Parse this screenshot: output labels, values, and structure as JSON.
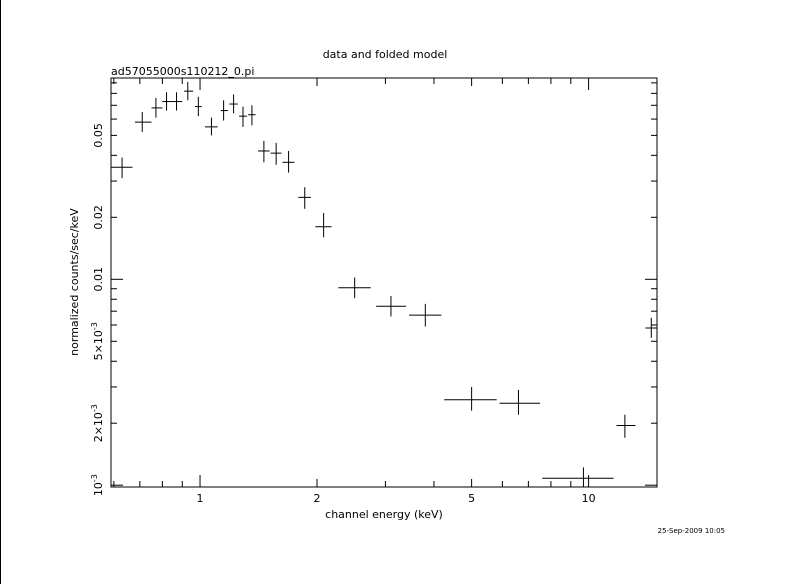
{
  "chart_data": {
    "type": "scatter",
    "title": "data and folded model",
    "subtitle": "ad57055000s110212_0.pi",
    "xlabel": "channel energy (keV)",
    "ylabel": "normalized counts/sec/keV",
    "x_scale": "log",
    "y_scale": "log",
    "xlim": [
      0.59,
      15.0
    ],
    "ylim": [
      0.00098,
      0.095
    ],
    "x_ticks": [
      {
        "value": 1,
        "label": "1"
      },
      {
        "value": 2,
        "label": "2"
      },
      {
        "value": 5,
        "label": "5"
      },
      {
        "value": 10,
        "label": "10"
      }
    ],
    "y_ticks": [
      {
        "value": 0.001,
        "label": "10",
        "sup": "-3"
      },
      {
        "value": 0.002,
        "label": "2×10",
        "sup": "-3"
      },
      {
        "value": 0.005,
        "label": "5×10",
        "sup": "-3"
      },
      {
        "value": 0.01,
        "label": "0.01"
      },
      {
        "value": 0.02,
        "label": "0.02"
      },
      {
        "value": 0.05,
        "label": "0.05"
      }
    ],
    "series": [
      {
        "points": [
          {
            "x": 0.63,
            "y": 0.035,
            "xlo": 0.59,
            "xhi": 0.67,
            "ylo": 0.031,
            "yhi": 0.039
          },
          {
            "x": 0.71,
            "y": 0.058,
            "xlo": 0.68,
            "xhi": 0.75,
            "ylo": 0.052,
            "yhi": 0.065
          },
          {
            "x": 0.77,
            "y": 0.068,
            "xlo": 0.75,
            "xhi": 0.8,
            "ylo": 0.061,
            "yhi": 0.076
          },
          {
            "x": 0.82,
            "y": 0.073,
            "xlo": 0.8,
            "xhi": 0.85,
            "ylo": 0.066,
            "yhi": 0.081
          },
          {
            "x": 0.87,
            "y": 0.073,
            "xlo": 0.85,
            "xhi": 0.9,
            "ylo": 0.066,
            "yhi": 0.081
          },
          {
            "x": 0.93,
            "y": 0.082,
            "xlo": 0.91,
            "xhi": 0.96,
            "ylo": 0.074,
            "yhi": 0.091
          },
          {
            "x": 0.99,
            "y": 0.069,
            "xlo": 0.97,
            "xhi": 1.01,
            "ylo": 0.062,
            "yhi": 0.077
          },
          {
            "x": 1.07,
            "y": 0.055,
            "xlo": 1.03,
            "xhi": 1.11,
            "ylo": 0.05,
            "yhi": 0.061
          },
          {
            "x": 1.15,
            "y": 0.066,
            "xlo": 1.13,
            "xhi": 1.18,
            "ylo": 0.059,
            "yhi": 0.074
          },
          {
            "x": 1.22,
            "y": 0.071,
            "xlo": 1.19,
            "xhi": 1.25,
            "ylo": 0.064,
            "yhi": 0.079
          },
          {
            "x": 1.29,
            "y": 0.062,
            "xlo": 1.26,
            "xhi": 1.32,
            "ylo": 0.055,
            "yhi": 0.069
          },
          {
            "x": 1.36,
            "y": 0.063,
            "xlo": 1.33,
            "xhi": 1.39,
            "ylo": 0.056,
            "yhi": 0.07
          },
          {
            "x": 1.46,
            "y": 0.042,
            "xlo": 1.41,
            "xhi": 1.51,
            "ylo": 0.037,
            "yhi": 0.047
          },
          {
            "x": 1.57,
            "y": 0.041,
            "xlo": 1.52,
            "xhi": 1.62,
            "ylo": 0.036,
            "yhi": 0.046
          },
          {
            "x": 1.69,
            "y": 0.037,
            "xlo": 1.63,
            "xhi": 1.75,
            "ylo": 0.033,
            "yhi": 0.042
          },
          {
            "x": 1.86,
            "y": 0.025,
            "xlo": 1.79,
            "xhi": 1.93,
            "ylo": 0.022,
            "yhi": 0.028
          },
          {
            "x": 2.08,
            "y": 0.018,
            "xlo": 1.98,
            "xhi": 2.18,
            "ylo": 0.016,
            "yhi": 0.021
          },
          {
            "x": 2.5,
            "y": 0.0091,
            "xlo": 2.27,
            "xhi": 2.75,
            "ylo": 0.0081,
            "yhi": 0.0102
          },
          {
            "x": 3.1,
            "y": 0.0074,
            "xlo": 2.84,
            "xhi": 3.39,
            "ylo": 0.0066,
            "yhi": 0.0083
          },
          {
            "x": 3.8,
            "y": 0.0067,
            "xlo": 3.45,
            "xhi": 4.18,
            "ylo": 0.0059,
            "yhi": 0.0076
          },
          {
            "x": 5.0,
            "y": 0.0026,
            "xlo": 4.25,
            "xhi": 5.8,
            "ylo": 0.0023,
            "yhi": 0.003
          },
          {
            "x": 6.6,
            "y": 0.0025,
            "xlo": 5.9,
            "xhi": 7.5,
            "ylo": 0.0022,
            "yhi": 0.0029
          },
          {
            "x": 9.7,
            "y": 0.00108,
            "xlo": 7.6,
            "xhi": 11.6,
            "ylo": 0.00098,
            "yhi": 0.00122
          },
          {
            "x": 12.4,
            "y": 0.00195,
            "xlo": 11.8,
            "xhi": 13.2,
            "ylo": 0.0017,
            "yhi": 0.0022
          },
          {
            "x": 14.5,
            "y": 0.0058,
            "xlo": 14.0,
            "xhi": 15.0,
            "ylo": 0.0052,
            "yhi": 0.0065
          }
        ]
      }
    ],
    "grid": false,
    "legend": "none",
    "color": "#000000"
  },
  "footer": {
    "timestamp": "25-Sep-2009 10:05"
  }
}
